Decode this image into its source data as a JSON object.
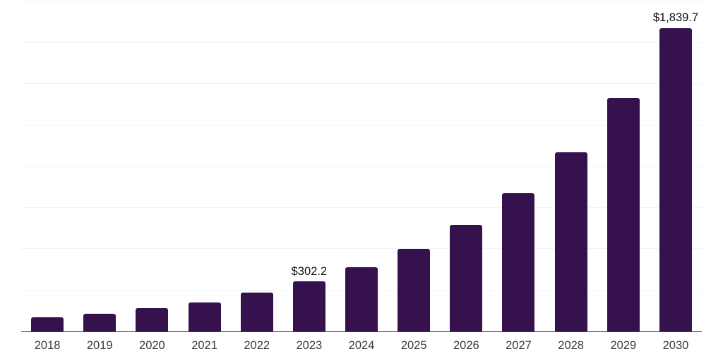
{
  "chart_data": {
    "type": "bar",
    "title": "",
    "xlabel": "",
    "ylabel": "",
    "categories": [
      "2018",
      "2019",
      "2020",
      "2021",
      "2022",
      "2023",
      "2024",
      "2025",
      "2026",
      "2027",
      "2028",
      "2029",
      "2030"
    ],
    "values": [
      84,
      105,
      139,
      176,
      234,
      302.2,
      388,
      501,
      645,
      838,
      1087,
      1414,
      1839.7
    ],
    "value_labels": [
      "",
      "",
      "",
      "",
      "",
      "$302.2",
      "",
      "",
      "",
      "",
      "",
      "",
      "$1,839.7"
    ],
    "ylim": [
      0,
      2000
    ],
    "gridline_step": 250,
    "grid": true,
    "legend": "none",
    "colors": {
      "bar": "#35114E",
      "gridline": "#f2f2f5",
      "axis_line": "#3d3d3d",
      "tick_label": "#3a3a3a",
      "value_label": "#111111",
      "background": "#ffffff"
    }
  }
}
